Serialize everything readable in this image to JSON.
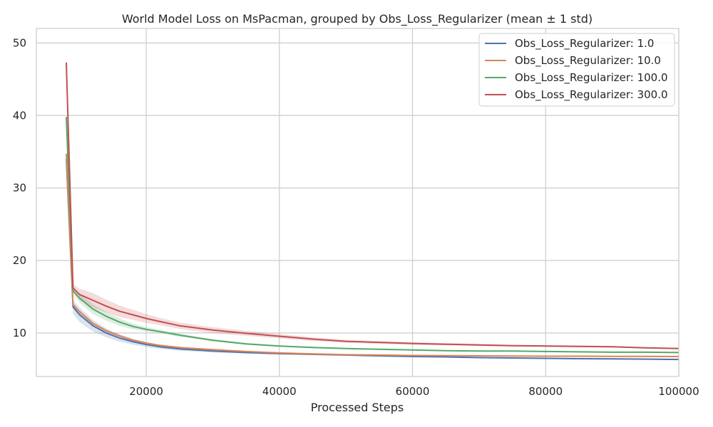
{
  "chart_data": {
    "type": "line",
    "title": "World Model Loss on MsPacman, grouped by Obs_Loss_Regularizer (mean ± 1 std)",
    "xlabel": "Processed Steps",
    "ylabel": "",
    "xlim": [
      3500,
      100000
    ],
    "ylim": [
      4,
      52
    ],
    "xticks": [
      20000,
      40000,
      60000,
      80000,
      100000
    ],
    "yticks": [
      10,
      20,
      30,
      40,
      50
    ],
    "grid": true,
    "legend_position": "top-right",
    "colors": {
      "grid": "#cccccc",
      "frame": "#cccccc"
    },
    "series": [
      {
        "name": "Obs_Loss_Regularizer: 1.0",
        "color": "#4c72b0",
        "x": [
          8000,
          9000,
          10000,
          12000,
          14000,
          16000,
          18000,
          20000,
          22000,
          25000,
          30000,
          35000,
          40000,
          45000,
          50000,
          55000,
          60000,
          65000,
          70000,
          75000,
          80000,
          85000,
          90000,
          95000,
          100000
        ],
        "y": [
          34,
          13.6,
          12.5,
          11.0,
          10.0,
          9.3,
          8.8,
          8.4,
          8.1,
          7.8,
          7.5,
          7.3,
          7.15,
          7.05,
          6.95,
          6.85,
          6.75,
          6.7,
          6.6,
          6.55,
          6.5,
          6.45,
          6.42,
          6.4,
          6.35
        ],
        "std": [
          0,
          0.9,
          1.0,
          0.8,
          0.6,
          0.5,
          0.4,
          0.35,
          0.3,
          0.25,
          0.2,
          0.15,
          0.12,
          0.1,
          0.1,
          0.1,
          0.08,
          0.08,
          0.08,
          0.08,
          0.08,
          0.08,
          0.08,
          0.08,
          0.08
        ]
      },
      {
        "name": "Obs_Loss_Regularizer: 10.0",
        "color": "#dd8452",
        "x": [
          8000,
          9000,
          10000,
          12000,
          14000,
          16000,
          18000,
          20000,
          22000,
          25000,
          30000,
          35000,
          40000,
          45000,
          50000,
          55000,
          60000,
          65000,
          70000,
          75000,
          80000,
          85000,
          90000,
          95000,
          100000
        ],
        "y": [
          34.7,
          13.9,
          12.9,
          11.3,
          10.3,
          9.6,
          9.0,
          8.6,
          8.3,
          8.0,
          7.7,
          7.45,
          7.25,
          7.12,
          7.0,
          6.95,
          6.9,
          6.88,
          6.85,
          6.83,
          6.8,
          6.8,
          6.78,
          6.78,
          6.75
        ],
        "std": [
          0,
          0.3,
          0.3,
          0.25,
          0.2,
          0.15,
          0.15,
          0.12,
          0.1,
          0.1,
          0.08,
          0.08,
          0.06,
          0.06,
          0.06,
          0.05,
          0.05,
          0.05,
          0.05,
          0.05,
          0.05,
          0.05,
          0.05,
          0.05,
          0.05
        ]
      },
      {
        "name": "Obs_Loss_Regularizer: 100.0",
        "color": "#55a868",
        "x": [
          8000,
          9000,
          10000,
          12000,
          14000,
          16000,
          18000,
          20000,
          22000,
          25000,
          30000,
          35000,
          40000,
          45000,
          50000,
          55000,
          60000,
          65000,
          70000,
          75000,
          80000,
          85000,
          90000,
          95000,
          100000
        ],
        "y": [
          39.8,
          15.8,
          14.8,
          13.3,
          12.3,
          11.5,
          10.9,
          10.5,
          10.2,
          9.7,
          9.0,
          8.5,
          8.2,
          8.0,
          7.85,
          7.75,
          7.65,
          7.55,
          7.5,
          7.5,
          7.45,
          7.4,
          7.35,
          7.35,
          7.3
        ],
        "std": [
          0,
          0.4,
          0.6,
          0.7,
          0.6,
          0.5,
          0.4,
          0.3,
          0.25,
          0.2,
          0.15,
          0.12,
          0.1,
          0.1,
          0.08,
          0.08,
          0.08,
          0.07,
          0.07,
          0.07,
          0.07,
          0.07,
          0.07,
          0.07,
          0.07
        ]
      },
      {
        "name": "Obs_Loss_Regularizer: 300.0",
        "color": "#c44e52",
        "x": [
          8000,
          9000,
          10000,
          12000,
          14000,
          16000,
          18000,
          20000,
          22000,
          25000,
          30000,
          35000,
          40000,
          45000,
          50000,
          55000,
          60000,
          65000,
          70000,
          75000,
          80000,
          85000,
          90000,
          95000,
          100000
        ],
        "y": [
          47.3,
          16.2,
          15.3,
          14.5,
          13.7,
          13.0,
          12.5,
          12.0,
          11.6,
          11.0,
          10.4,
          9.95,
          9.55,
          9.15,
          8.85,
          8.7,
          8.55,
          8.45,
          8.35,
          8.25,
          8.2,
          8.15,
          8.1,
          7.95,
          7.85
        ],
        "std": [
          0.5,
          0.5,
          0.8,
          1.0,
          0.9,
          0.8,
          0.7,
          0.6,
          0.5,
          0.45,
          0.4,
          0.35,
          0.3,
          0.25,
          0.2,
          0.2,
          0.18,
          0.15,
          0.15,
          0.12,
          0.12,
          0.12,
          0.1,
          0.1,
          0.1
        ]
      }
    ]
  }
}
